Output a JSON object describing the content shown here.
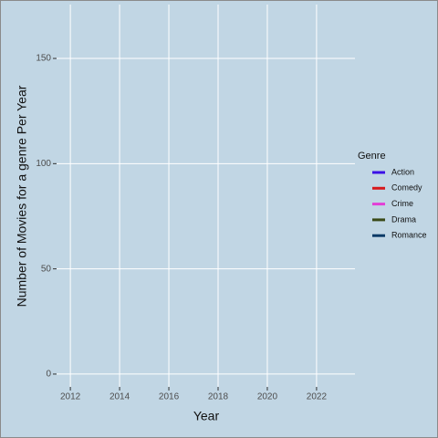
{
  "chart_data": {
    "type": "line",
    "x_label": "Year",
    "y_label": "Number of Movies for a genre Per Year",
    "legend_title": "Genre",
    "legend_position": "right",
    "series": [
      {
        "name": "Action",
        "color": "#3b10e6",
        "values": []
      },
      {
        "name": "Comedy",
        "color": "#d7191c",
        "values": []
      },
      {
        "name": "Crime",
        "color": "#e33fd6",
        "values": []
      },
      {
        "name": "Drama",
        "color": "#3a4a18",
        "values": []
      },
      {
        "name": "Romance",
        "color": "#0b3a66",
        "values": []
      }
    ],
    "x": [],
    "xlim": [
      2011.44,
      2023.56
    ],
    "xticks": [
      2012,
      2014,
      2016,
      2018,
      2020,
      2022
    ],
    "ylim": [
      -6.1,
      175.6
    ],
    "yticks": [
      0,
      50,
      100,
      150
    ],
    "grid": true,
    "background": "#c1d6e4"
  }
}
